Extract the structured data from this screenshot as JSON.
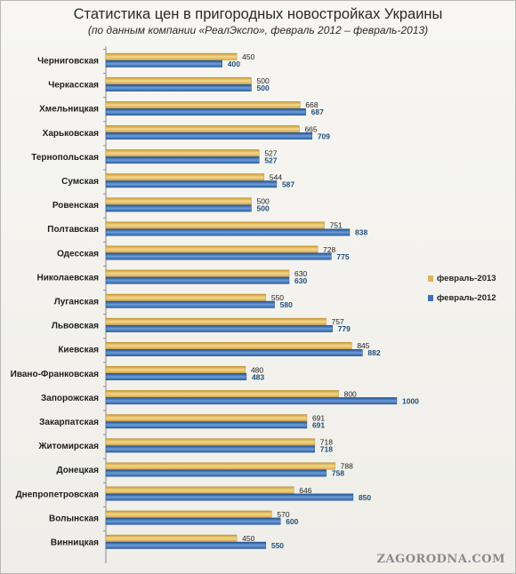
{
  "chart_data": {
    "type": "bar",
    "orientation": "horizontal",
    "title": "Статистика цен в пригородных новостройках Украины",
    "subtitle": "(по данным компании «РеалЭкспо», февраль 2012 – февраль-2013)",
    "categories": [
      "Черниговская",
      "Черкасская",
      "Хмельницкая",
      "Харьковская",
      "Тернопольская",
      "Сумская",
      "Ровенская",
      "Полтавская",
      "Одесская",
      "Николаевская",
      "Луганская",
      "Львовская",
      "Киевская",
      "Ивано-Франковская",
      "Запорожская",
      "Закарпатская",
      "Житомирская",
      "Донецкая",
      "Днепропетровская",
      "Волынская",
      "Винницкая"
    ],
    "series": [
      {
        "name": "февраль-2013",
        "color": "#e0b45a",
        "values": [
          450,
          500,
          668,
          665,
          527,
          544,
          500,
          751,
          728,
          630,
          550,
          757,
          845,
          480,
          800,
          691,
          718,
          788,
          646,
          570,
          450
        ]
      },
      {
        "name": "февраль-2012",
        "color": "#3d74b5",
        "values": [
          400,
          500,
          687,
          709,
          527,
          587,
          500,
          838,
          775,
          630,
          580,
          779,
          882,
          483,
          1000,
          691,
          718,
          758,
          850,
          600,
          550
        ]
      }
    ],
    "xlim": [
      0,
      1000
    ],
    "grid": false,
    "legend_position": "right"
  },
  "watermark": "ZAGORODNA.COM"
}
